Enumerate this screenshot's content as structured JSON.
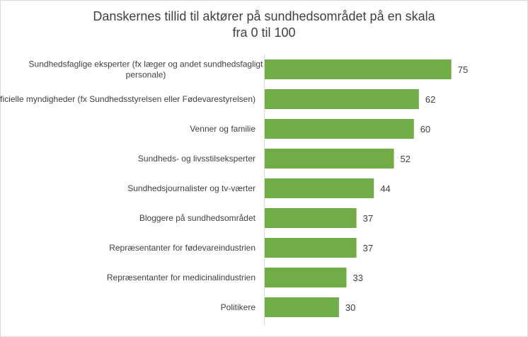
{
  "chart_data": {
    "type": "bar",
    "orientation": "horizontal",
    "title_lines": [
      "Danskernes tillid til aktører på sundhedsområdet på en skala",
      "fra 0 til 100"
    ],
    "categories": [
      [
        "Sundhedsfaglige eksperter (fx læger og andet sundhedsfagligt",
        "personale)"
      ],
      [
        "Officielle myndigheder (fx Sundhedsstyrelsen eller Fødevarestyrelsen)"
      ],
      [
        "Venner og familie"
      ],
      [
        "Sundheds- og livsstilseksperter"
      ],
      [
        "Sundhedsjournalister og tv-værter"
      ],
      [
        "Bloggere på sundhedsområdet"
      ],
      [
        "Repræsentanter for fødevareindustrien"
      ],
      [
        "Repræsentanter for medicinalindustrien"
      ],
      [
        "Politikere"
      ]
    ],
    "values": [
      75,
      62,
      60,
      52,
      44,
      37,
      37,
      33,
      30
    ],
    "xlim": [
      0,
      100
    ],
    "bar_color": "#70ad47",
    "axis_color": "#d9d9d9",
    "grid": false,
    "legend": "none",
    "data_labels": true
  }
}
